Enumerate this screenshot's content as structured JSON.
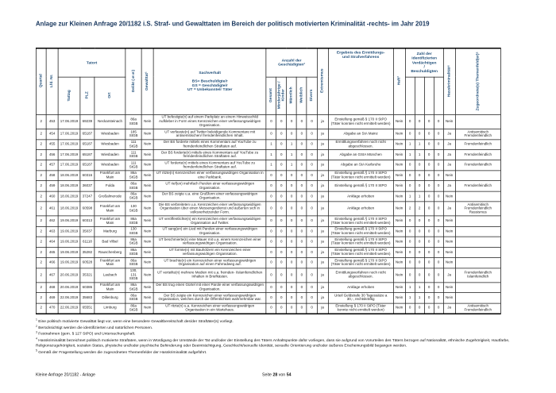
{
  "title": "Anlage zur Kleinen Anfrage 20/1182 i.S. Straf- und Gewalttaten im Bereich der politisch motivierten Kriminalität -rechts- im Jahr 2019",
  "colors": {
    "header_text": "#1F4E79",
    "title_text": "#17365D",
    "body_text": "#1A1A1A",
    "border": "#000000"
  },
  "table": {
    "headers": {
      "quartal": "Quartal",
      "lfd_nr": "Lfd. Nr.",
      "tatort_group": "Tatort",
      "tattag": "Tattag",
      "plz": "PLZ",
      "ort": "Ort",
      "delikt": "Delikt (§§)",
      "gewalttat": "Gewalttat¹",
      "sachverhalt": "Sachverhalt",
      "sachverhalt_legend": "BS= Beschuldigte/r\nGS = Geschädigte/r\nUT = Unbekannte/r Täter",
      "geschaedigte_group": "Anzahl der\nGeschädigten²",
      "geschaedigte_cols": [
        "Gesamt",
        "Minderjährige / Kinder",
        "Männlich",
        "Weiblich",
        "Divers"
      ],
      "extremismus": "Extremismus",
      "ergebnis": "Ergebnis des Ermittlungs-\nund Strafverfahrens",
      "haft": "Haft³",
      "verdaechtige_group": "Zahl der\nidentifizierten\nVerdächtigen\n/\nBeschuldigten",
      "hasskriminalitaet": "Hasskriminalität⁴",
      "themenfeld": "Zugeordnete(s) Themenfeld(er)⁵"
    },
    "rows": [
      {
        "quartal": "2",
        "lfd_nr": "453",
        "tattag": "17.06.2019",
        "plz": "69239",
        "ort": "Neckarsteinach",
        "delikt": "86a StGB",
        "gewalttat": "Nein",
        "sachverhalt": "UT befestigte(n) auf einem Parkplatz an einem Hinweisschild Aufkleber in Form eines Kennzeichen einer verfassungswidrigen Organisation.",
        "geschaedigte": [
          "0",
          "0",
          "0",
          "0",
          "0"
        ],
        "extremismus": "ja",
        "ergebnis": "Einstellung gemäß § 170 II StPO (Täter konnten nicht ermittelt werden)",
        "haft": "Nein",
        "verdaechtige": [
          "0",
          "0",
          "0",
          "0"
        ],
        "hasskriminalitaet": "Nein",
        "themenfeld": ""
      },
      {
        "quartal": "2",
        "lfd_nr": "454",
        "tattag": "17.06.2019",
        "plz": "65187",
        "ort": "Wiesbaden",
        "delikt": "185 StGB",
        "gewalttat": "Nein",
        "sachverhalt": "UT verfasste(n) auf Twitter beleidigende Kommentare mit antisemitischen/ fremdenfeindlichen Inhalt.",
        "geschaedigte": [
          "0",
          "0",
          "0",
          "0",
          "0"
        ],
        "extremismus": "ja",
        "ergebnis": "Abgabe an StA Mainz",
        "haft": "Nein",
        "verdaechtige": [
          "0",
          "0",
          "0",
          "0"
        ],
        "hasskriminalitaet": "Ja",
        "themenfeld": "Antisemitisch\nFremdenfeindlich"
      },
      {
        "quartal": "2",
        "lfd_nr": "455",
        "tattag": "17.06.2019",
        "plz": "65187",
        "ort": "Wiesbaden",
        "delikt": "111 StGB",
        "gewalttat": "Nein",
        "sachverhalt": "Der BS forderte mittels eines Kommentars auf YouTube zu fremdenfeindlichen Straftaten auf.",
        "geschaedigte": [
          "1",
          "0",
          "1",
          "0",
          "0"
        ],
        "extremismus": "ja",
        "ergebnis": "Ermittlungsverfahren noch nicht abgeschlossen.",
        "haft": "Nein",
        "verdaechtige": [
          "1",
          "1",
          "0",
          "0"
        ],
        "hasskriminalitaet": "Ja",
        "themenfeld": "Fremdenfeindlich"
      },
      {
        "quartal": "2",
        "lfd_nr": "456",
        "tattag": "17.06.2019",
        "plz": "65187",
        "ort": "Wiesbaden",
        "delikt": "111 StGB",
        "gewalttat": "Nein",
        "sachverhalt": "Der BS forderte(n) mittels eines Kommentars auf YouTube zu fremdenfeindlichen Straftaten auf.",
        "geschaedigte": [
          "1",
          "0",
          "1",
          "0",
          "0"
        ],
        "extremismus": "ja",
        "ergebnis": "Abgabe an GStA München",
        "haft": "Nein",
        "verdaechtige": [
          "1",
          "1",
          "0",
          "0"
        ],
        "hasskriminalitaet": "Ja",
        "themenfeld": "Fremdenfeindlich"
      },
      {
        "quartal": "2",
        "lfd_nr": "457",
        "tattag": "17.06.2019",
        "plz": "65187",
        "ort": "Wiesbaden",
        "delikt": "111 StGB",
        "gewalttat": "Nein",
        "sachverhalt": "UT forderte(n) mittels eines Kommentars auf YouTube zu fremdenfeindlichen Straftaten auf.",
        "geschaedigte": [
          "1",
          "0",
          "1",
          "0",
          "0"
        ],
        "extremismus": "ja",
        "ergebnis": "Abgabe an StA Karlsruhe",
        "haft": "Nein",
        "verdaechtige": [
          "0",
          "0",
          "0",
          "0"
        ],
        "hasskriminalitaet": "Ja",
        "themenfeld": "Fremdenfeindlich"
      },
      {
        "quartal": "2",
        "lfd_nr": "458",
        "tattag": "18.06.2019",
        "plz": "60316",
        "ort": "Frankfurt am Main",
        "delikt": "86a StGB",
        "gewalttat": "Nein",
        "sachverhalt": "UT ritzte(n) Kennzeichen einer verfassungswidrigen Organisation in eine Parkbank.",
        "geschaedigte": [
          "0",
          "0",
          "0",
          "0",
          "0"
        ],
        "extremismus": "ja",
        "ergebnis": "Einstellung gemäß § 170 II StPO (Täter konnten nicht ermittelt werden)",
        "haft": "Nein",
        "verdaechtige": [
          "0",
          "0",
          "0",
          "0"
        ],
        "hasskriminalitaet": "Nein",
        "themenfeld": ""
      },
      {
        "quartal": "2",
        "lfd_nr": "459",
        "tattag": "18.06.2019",
        "plz": "36037",
        "ort": "Fulda",
        "delikt": "86a StGB",
        "gewalttat": "Nein",
        "sachverhalt": "UT rief(en) mehrfach Parolen einer verfassungswidrigen Organisation.",
        "geschaedigte": [
          "0",
          "0",
          "0",
          "0",
          "0"
        ],
        "extremismus": "ja",
        "ergebnis": "Einstellung gemäß § 170 II StPO",
        "haft": "Nein",
        "verdaechtige": [
          "0",
          "0",
          "0",
          "0"
        ],
        "hasskriminalitaet": "Ja",
        "themenfeld": "Fremdenfeindlich"
      },
      {
        "quartal": "2",
        "lfd_nr": "460",
        "tattag": "18.06.2019",
        "plz": "37247",
        "ort": "Großalmerode",
        "delikt": "86a StGB",
        "gewalttat": "Nein",
        "sachverhalt": "Der BS zeigte u.a. eine Grußform einer verfassungswidrigen Organisation.",
        "geschaedigte": [
          "0",
          "0",
          "0",
          "0",
          "0"
        ],
        "extremismus": "ja",
        "ergebnis": "Anklage erhoben",
        "haft": "Nein",
        "verdaechtige": [
          "1",
          "1",
          "0",
          "0"
        ],
        "hasskriminalitaet": "Nein",
        "themenfeld": ""
      },
      {
        "quartal": "2",
        "lfd_nr": "461",
        "tattag": "18.06.2019",
        "plz": "60598",
        "ort": "Frankfurt am Main",
        "delikt": "130 StGB",
        "gewalttat": "Nein",
        "sachverhalt": "Die BS verbreiteten u.a. Kennzeichen einer verfassungswidrigen Organisation über einen Messengerdienst und äußerten sich in volksverhetzender Form.",
        "geschaedigte": [
          "0",
          "0",
          "0",
          "0",
          "0"
        ],
        "extremismus": "ja",
        "ergebnis": "Anklage erhoben",
        "haft": "Nein",
        "verdaechtige": [
          "2",
          "2",
          "0",
          "0"
        ],
        "hasskriminalitaet": "Ja",
        "themenfeld": "Antisemitisch\nFremdenfeindlich\nRassismus"
      },
      {
        "quartal": "2",
        "lfd_nr": "462",
        "tattag": "19.06.2019",
        "plz": "60313",
        "ort": "Frankfurt am Main",
        "delikt": "86a StGB",
        "gewalttat": "Nein",
        "sachverhalt": "UT veröffentlichte(n) ein Kennzeichen einer verfassungswidrigen Organisation auf Twitter.",
        "geschaedigte": [
          "0",
          "0",
          "0",
          "0",
          "0"
        ],
        "extremismus": "ja",
        "ergebnis": "Einstellung gemäß § 170 II StPO (Täter konnten nicht ermittelt werden)",
        "haft": "Nein",
        "verdaechtige": [
          "0",
          "0",
          "0",
          "0"
        ],
        "hasskriminalitaet": "Nein",
        "themenfeld": ""
      },
      {
        "quartal": "2",
        "lfd_nr": "463",
        "tattag": "19.06.2019",
        "plz": "35037",
        "ort": "Marburg",
        "delikt": "130 StGB",
        "gewalttat": "Nein",
        "sachverhalt": "UT sang(en) ein Lied mit Parolen einer verfassungswidrigen Organisation.",
        "geschaedigte": [
          "0",
          "0",
          "0",
          "0",
          "0"
        ],
        "extremismus": "ja",
        "ergebnis": "Einstellung gemäß § 170 II StPO (Täter konnten nicht ermittelt werden)",
        "haft": "Nein",
        "verdaechtige": [
          "0",
          "0",
          "0",
          "0"
        ],
        "hasskriminalitaet": "Nein",
        "themenfeld": ""
      },
      {
        "quartal": "2",
        "lfd_nr": "464",
        "tattag": "19.06.2019",
        "plz": "61118",
        "ort": "Bad Vilbel",
        "delikt": "86a StGB",
        "gewalttat": "Nein",
        "sachverhalt": "UT beschmierte(n) eine Mauer mit u.a. einem Kennzeichen einer verfassungswidrigen Organisation.",
        "geschaedigte": [
          "0",
          "0",
          "0",
          "0",
          "0"
        ],
        "extremismus": "ja",
        "ergebnis": "Einstellung gemäß § 170 II StPO (Täter konnten nicht ermittelt werden)",
        "haft": "Nein",
        "verdaechtige": [
          "0",
          "0",
          "0",
          "0"
        ],
        "hasskriminalitaet": "Nein",
        "themenfeld": ""
      },
      {
        "quartal": "2",
        "lfd_nr": "465",
        "tattag": "19.06.2019",
        "plz": "35282",
        "ort": "Rauschenberg",
        "delikt": "86a StGB",
        "gewalttat": "Nein",
        "sachverhalt": "UT formte(n) mit Bauhölzern ein Kennzeichen einer verfassungswidrigen Organisation.",
        "geschaedigte": [
          "0",
          "0",
          "0",
          "0",
          "0"
        ],
        "extremismus": "ja",
        "ergebnis": "Einstellung gemäß § 170 II StPO (Täter konnten nicht ermittelt werden)",
        "haft": "Nein",
        "verdaechtige": [
          "0",
          "0",
          "0",
          "0"
        ],
        "hasskriminalitaet": "Nein",
        "themenfeld": ""
      },
      {
        "quartal": "2",
        "lfd_nr": "466",
        "tattag": "19.06.2019",
        "plz": "60528",
        "ort": "Frankfurt am Main",
        "delikt": "86a StGB",
        "gewalttat": "Nein",
        "sachverhalt": "UT brachte(n) ein Kennzeichen einer verfassungswidrigen Organisation auf einen Fahrradweg auf.",
        "geschaedigte": [
          "0",
          "0",
          "0",
          "0",
          "0"
        ],
        "extremismus": "ja",
        "ergebnis": "Einstellung gemäß § 170 II StPO (Täter konnten nicht ermittelt werden)",
        "haft": "Nein",
        "verdaechtige": [
          "0",
          "0",
          "0",
          "0"
        ],
        "hasskriminalitaet": "Nein",
        "themenfeld": ""
      },
      {
        "quartal": "2",
        "lfd_nr": "467",
        "tattag": "20.06.2019",
        "plz": "35321",
        "ort": "Laubach",
        "delikt": "130, 131 StGB",
        "gewalttat": "Nein",
        "sachverhalt": "UT verteilte(n) mehrere Medien mit u.a. fremden- /islamfeindlichen Inhalten in Briefkästen.",
        "geschaedigte": [
          "0",
          "0",
          "0",
          "0",
          "0"
        ],
        "extremismus": "ja",
        "ergebnis": "Ermittlungsverfahren noch nicht abgeschlossen.",
        "haft": "Nein",
        "verdaechtige": [
          "0",
          "0",
          "0",
          "0"
        ],
        "hasskriminalitaet": "Ja",
        "themenfeld": "Fremdenfeindlich\nIslamfeindlich"
      },
      {
        "quartal": "2",
        "lfd_nr": "468",
        "tattag": "20.06.2019",
        "plz": "60386",
        "ort": "Frankfurt am Main",
        "delikt": "86a StGB",
        "gewalttat": "Nein",
        "sachverhalt": "Der BS trug einen Gürtel mit einer Parole einer verfassungswidrigen Organisation.",
        "geschaedigte": [
          "0",
          "0",
          "0",
          "0",
          "0"
        ],
        "extremismus": "ja",
        "ergebnis": "Anklage erhoben",
        "haft": "Nein",
        "verdaechtige": [
          "1",
          "1",
          "0",
          "0"
        ],
        "hasskriminalitaet": "Nein",
        "themenfeld": ""
      },
      {
        "quartal": "2",
        "lfd_nr": "469",
        "tattag": "22.06.2019",
        "plz": "35683",
        "ort": "Dillenburg",
        "delikt": "86a StGB",
        "gewalttat": "Nein",
        "sachverhalt": "Der BS zeigte ein Kennzeichen einer verfassungswidrigen Organisation, welches durch die Öffentlichkeit wahrnehmbar war.",
        "geschaedigte": [
          "0",
          "0",
          "0",
          "0",
          "0"
        ],
        "extremismus": "ja",
        "ergebnis": "Urteil Geldstrafe 30 Tagessätze a 30,-, rechtskräftig",
        "haft": "Nein",
        "verdaechtige": [
          "1",
          "1",
          "0",
          "0"
        ],
        "hasskriminalitaet": "Nein",
        "themenfeld": ""
      },
      {
        "quartal": "2",
        "lfd_nr": "470",
        "tattag": "22.06.2019",
        "plz": "65551",
        "ort": "Limburg",
        "delikt": "86a StGB",
        "gewalttat": "Nein",
        "sachverhalt": "UT ritzte(n) u.a. Kennzeichen einer verfassungswidrigen Organisation in ein Wartehaus.",
        "geschaedigte": [
          "0",
          "0",
          "0",
          "0",
          "0"
        ],
        "extremismus": "ja",
        "ergebnis": "Einstellung § 170 II StPO (Täter konnte nicht ermittelt werden)",
        "haft": "Nein",
        "verdaechtige": [
          "0",
          "0",
          "0",
          "0"
        ],
        "hasskriminalitaet": "Ja",
        "themenfeld": "Antisemitisch\nFremdenfeindlich"
      }
    ]
  },
  "footnotes": [
    {
      "marker": "1",
      "text": "Eine politisch motivierte Gewalttat liegt vor, wenn eine besondere Gewaltbereitschaft des/der Straftäter(s) vorliegt."
    },
    {
      "marker": "2",
      "text": "Berücksichtigt werden die identifizierten und natürlichen Personen."
    },
    {
      "marker": "3",
      "text": "Festnahmen (gem. § 127 StPO) und Untersuchungshaft."
    },
    {
      "marker": "4",
      "text": "Hasskriminalität bezeichnet politisch motivierte Straftaten, wenn in Würdigung der Umstände der Tat und/oder der Einstellung des Täters Anhaltspunkte dafür vorliegen, dass sie aufgrund von Vorurteilen des Täters bezogen auf Nationalität, ethnische Zugehörigkeit, Hautfarbe, Religionszugehörigkeit, sozialen Status, physische und/oder psychische Behinderung oder Beeinträchtigung, Geschlecht/sexuelle Identität, sexuelle Orientierung und/oder äußeres Erscheinungsbild begangen werden."
    },
    {
      "marker": "5",
      "text": "Gemäß der Fragestellung werden die zugeordneten Themenfelder der Hasskriminalität aufgeführt."
    }
  ],
  "footer": {
    "doc_label": "Kleine Anfrage 20/1182 - Anlage",
    "page_word": "Seite",
    "page_number": "28",
    "of_word": "von",
    "page_total": "54"
  }
}
